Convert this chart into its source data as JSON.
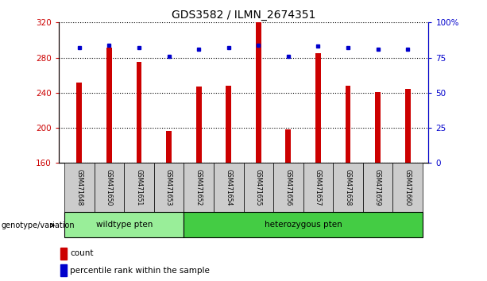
{
  "title": "GDS3582 / ILMN_2674351",
  "samples": [
    "GSM471648",
    "GSM471650",
    "GSM471651",
    "GSM471653",
    "GSM471652",
    "GSM471654",
    "GSM471655",
    "GSM471656",
    "GSM471657",
    "GSM471658",
    "GSM471659",
    "GSM471660"
  ],
  "counts": [
    252,
    291,
    275,
    196,
    247,
    248,
    320,
    198,
    285,
    248,
    241,
    244
  ],
  "percentiles": [
    82,
    84,
    82,
    76,
    81,
    82,
    84,
    76,
    83,
    82,
    81,
    81
  ],
  "wildtype_count": 4,
  "ylim_left": [
    160,
    320
  ],
  "ylim_right": [
    0,
    100
  ],
  "yticks_left": [
    160,
    200,
    240,
    280,
    320
  ],
  "yticks_right": [
    0,
    25,
    50,
    75,
    100
  ],
  "ytick_labels_right": [
    "0",
    "25",
    "50",
    "75",
    "100%"
  ],
  "bar_color": "#cc0000",
  "dot_color": "#0000cc",
  "wildtype_color": "#99ee99",
  "hetero_color": "#44cc44",
  "sample_bg_color": "#cccccc",
  "title_fontsize": 10,
  "genotype_label": "genotype/variation",
  "wildtype_label": "wildtype pten",
  "hetero_label": "heterozygous pten",
  "legend_count": "count",
  "legend_percentile": "percentile rank within the sample"
}
